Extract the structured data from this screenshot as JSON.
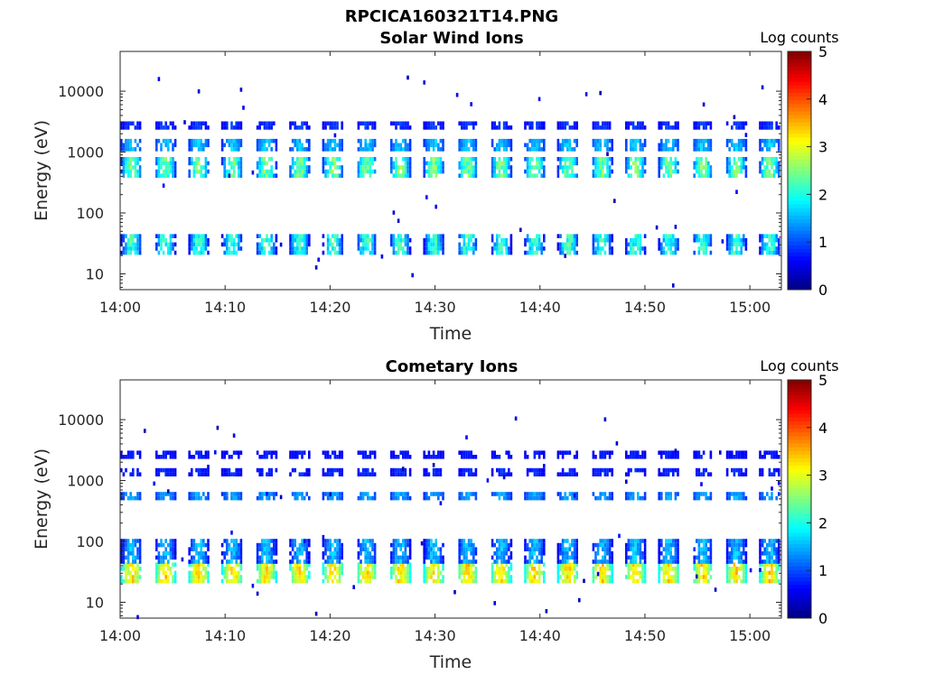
{
  "figure": {
    "filename_title": "RPCICA160321T14.PNG"
  },
  "colormap": [
    "#00007f",
    "#0000ff",
    "#007fff",
    "#00ffff",
    "#7fff7f",
    "#ffff00",
    "#ff7f00",
    "#ff0000",
    "#7f0000"
  ],
  "chart_data": [
    {
      "type": "heatmap",
      "title": "Solar Wind Ions",
      "xlabel": "Time",
      "ylabel": "Energy (eV)",
      "colorbar_label": "Log counts",
      "x_ticks": [
        "14:00",
        "14:10",
        "14:20",
        "14:30",
        "14:40",
        "14:50",
        "15:00"
      ],
      "x_tick_minutes": [
        0,
        10,
        20,
        30,
        40,
        50,
        60
      ],
      "x_range_minutes": [
        0,
        63
      ],
      "y_scale": "log",
      "y_ticks": [
        10,
        100,
        1000,
        10000
      ],
      "y_tick_labels": [
        "10",
        "100",
        "1000",
        "10000"
      ],
      "ylim": [
        5.5,
        45000
      ],
      "c_ticks": [
        0,
        1,
        2,
        3,
        4,
        5
      ],
      "clim": [
        0,
        5
      ],
      "scan_period_minutes": 3.2,
      "bands": [
        {
          "energy_range": [
            23,
            45
          ],
          "level_range": [
            0.5,
            2.5
          ]
        },
        {
          "energy_range": [
            380,
            830
          ],
          "level_range": [
            0.8,
            2.8
          ]
        },
        {
          "energy_range": [
            1150,
            1650
          ],
          "level_range": [
            0.8,
            1.8
          ]
        },
        {
          "energy_range": [
            2400,
            3200
          ],
          "level_range": [
            0.5,
            1.0
          ]
        }
      ],
      "sparse_energy_range": [
        6,
        20000
      ]
    },
    {
      "type": "heatmap",
      "title": "Cometary Ions",
      "xlabel": "Time",
      "ylabel": "Energy (eV)",
      "colorbar_label": "Log counts",
      "x_ticks": [
        "14:00",
        "14:10",
        "14:20",
        "14:30",
        "14:40",
        "14:50",
        "15:00"
      ],
      "x_tick_minutes": [
        0,
        10,
        20,
        30,
        40,
        50,
        60
      ],
      "x_range_minutes": [
        0,
        63
      ],
      "y_scale": "log",
      "y_ticks": [
        10,
        100,
        1000,
        10000
      ],
      "y_tick_labels": [
        "10",
        "100",
        "1000",
        "10000"
      ],
      "ylim": [
        5.5,
        45000
      ],
      "c_ticks": [
        0,
        1,
        2,
        3,
        4,
        5
      ],
      "clim": [
        0,
        5
      ],
      "scan_period_minutes": 3.2,
      "bands": [
        {
          "energy_range": [
            22,
            45
          ],
          "level_range": [
            1.8,
            3.6
          ]
        },
        {
          "energy_range": [
            45,
            110
          ],
          "level_range": [
            0.5,
            1.8
          ]
        },
        {
          "energy_range": [
            480,
            650
          ],
          "level_range": [
            0.8,
            1.6
          ]
        },
        {
          "energy_range": [
            1300,
            1600
          ],
          "level_range": [
            0.5,
            0.9
          ]
        },
        {
          "energy_range": [
            2500,
            3100
          ],
          "level_range": [
            0.5,
            0.8
          ]
        }
      ],
      "sparse_energy_range": [
        6,
        12000
      ]
    }
  ]
}
